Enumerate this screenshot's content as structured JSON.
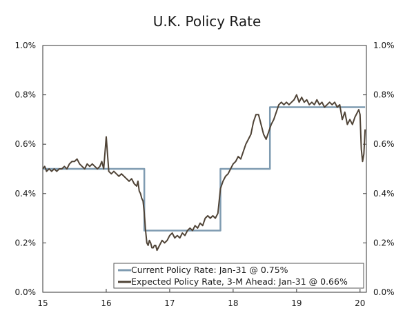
{
  "chart_data": {
    "type": "line",
    "title": "U.K. Policy Rate",
    "xlabel": "",
    "ylabel": "",
    "xlim": [
      15,
      20.1
    ],
    "ylim": [
      0.0,
      1.0
    ],
    "x_ticks": [
      15,
      16,
      17,
      18,
      19,
      20
    ],
    "x_tick_labels": [
      "15",
      "16",
      "17",
      "18",
      "19",
      "20"
    ],
    "y_ticks": [
      0.0,
      0.2,
      0.4,
      0.6,
      0.8,
      1.0
    ],
    "y_tick_labels": [
      "0.0%",
      "0.2%",
      "0.4%",
      "0.6%",
      "0.8%",
      "1.0%"
    ],
    "legend_position": "bottom-right",
    "series": [
      {
        "name": "Current Policy Rate: Jan-31 @ 0.75%",
        "color": "#7f9bb1",
        "step": true,
        "x": [
          15.0,
          16.6,
          16.6,
          17.8,
          17.8,
          18.58,
          18.58,
          20.08
        ],
        "y": [
          0.5,
          0.5,
          0.25,
          0.25,
          0.5,
          0.5,
          0.75,
          0.75
        ]
      },
      {
        "name": "Expected Policy Rate, 3-M Ahead: Jan-31 @ 0.66%",
        "color": "#4f4336",
        "step": false,
        "x": [
          15.0,
          15.03,
          15.06,
          15.1,
          15.14,
          15.18,
          15.22,
          15.26,
          15.3,
          15.34,
          15.38,
          15.42,
          15.46,
          15.5,
          15.54,
          15.58,
          15.62,
          15.66,
          15.7,
          15.74,
          15.78,
          15.82,
          15.86,
          15.9,
          15.93,
          15.96,
          16.0,
          16.04,
          16.08,
          16.12,
          16.16,
          16.2,
          16.24,
          16.28,
          16.32,
          16.36,
          16.4,
          16.44,
          16.48,
          16.5,
          16.52,
          16.54,
          16.56,
          16.58,
          16.6,
          16.62,
          16.64,
          16.66,
          16.68,
          16.7,
          16.72,
          16.74,
          16.76,
          16.78,
          16.8,
          16.84,
          16.88,
          16.92,
          16.96,
          17.0,
          17.04,
          17.08,
          17.12,
          17.16,
          17.2,
          17.24,
          17.28,
          17.32,
          17.36,
          17.4,
          17.44,
          17.48,
          17.52,
          17.56,
          17.6,
          17.64,
          17.68,
          17.72,
          17.76,
          17.8,
          17.84,
          17.88,
          17.92,
          17.96,
          18.0,
          18.04,
          18.08,
          18.12,
          18.16,
          18.2,
          18.24,
          18.28,
          18.32,
          18.36,
          18.4,
          18.44,
          18.48,
          18.52,
          18.56,
          18.6,
          18.64,
          18.68,
          18.72,
          18.76,
          18.8,
          18.84,
          18.88,
          18.92,
          18.96,
          19.0,
          19.04,
          19.08,
          19.12,
          19.16,
          19.2,
          19.24,
          19.28,
          19.32,
          19.36,
          19.4,
          19.44,
          19.48,
          19.52,
          19.56,
          19.6,
          19.64,
          19.68,
          19.72,
          19.76,
          19.8,
          19.84,
          19.88,
          19.92,
          19.96,
          19.98,
          20.0,
          20.02,
          20.04,
          20.06,
          20.08
        ],
        "y": [
          0.5,
          0.51,
          0.49,
          0.5,
          0.49,
          0.5,
          0.49,
          0.5,
          0.5,
          0.51,
          0.5,
          0.52,
          0.53,
          0.53,
          0.54,
          0.52,
          0.51,
          0.5,
          0.52,
          0.51,
          0.52,
          0.51,
          0.5,
          0.51,
          0.53,
          0.5,
          0.63,
          0.49,
          0.48,
          0.49,
          0.48,
          0.47,
          0.48,
          0.47,
          0.46,
          0.45,
          0.46,
          0.44,
          0.43,
          0.45,
          0.41,
          0.4,
          0.38,
          0.37,
          0.32,
          0.25,
          0.2,
          0.19,
          0.21,
          0.2,
          0.18,
          0.18,
          0.19,
          0.19,
          0.17,
          0.19,
          0.21,
          0.2,
          0.21,
          0.23,
          0.24,
          0.22,
          0.23,
          0.22,
          0.24,
          0.23,
          0.25,
          0.26,
          0.25,
          0.27,
          0.26,
          0.28,
          0.27,
          0.3,
          0.31,
          0.3,
          0.31,
          0.3,
          0.32,
          0.42,
          0.45,
          0.47,
          0.48,
          0.5,
          0.52,
          0.53,
          0.55,
          0.54,
          0.57,
          0.6,
          0.62,
          0.64,
          0.69,
          0.72,
          0.72,
          0.68,
          0.64,
          0.62,
          0.65,
          0.68,
          0.7,
          0.73,
          0.76,
          0.77,
          0.76,
          0.77,
          0.76,
          0.77,
          0.78,
          0.8,
          0.77,
          0.79,
          0.77,
          0.78,
          0.76,
          0.77,
          0.76,
          0.78,
          0.76,
          0.77,
          0.75,
          0.76,
          0.77,
          0.76,
          0.77,
          0.75,
          0.76,
          0.7,
          0.73,
          0.68,
          0.7,
          0.68,
          0.71,
          0.73,
          0.74,
          0.72,
          0.58,
          0.53,
          0.56,
          0.66
        ]
      }
    ]
  }
}
